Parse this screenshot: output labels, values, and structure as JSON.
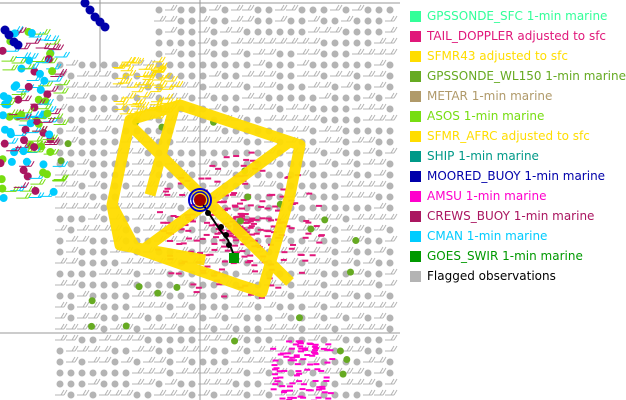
{
  "map": {
    "storm_center_color": "#a00000",
    "ring_color": "#0000cc",
    "track_color": "#000000",
    "flagged_color": "#b4b4b4",
    "flight_track_color": "#ffdd00",
    "tail_doppler_color": "#e0187a"
  },
  "legend": {
    "items": [
      {
        "label": "GPSSONDE_SFC 1-min marine",
        "color": "#33ff99"
      },
      {
        "label": "TAIL_DOPPLER adjusted to sfc",
        "color": "#e0187a"
      },
      {
        "label": "SFMR43 adjusted to sfc",
        "color": "#ffdd00"
      },
      {
        "label": "GPSSONDE_WL150 1-min marine",
        "color": "#66aa22"
      },
      {
        "label": "METAR 1-min marine",
        "color": "#b09a6a"
      },
      {
        "label": "ASOS 1-min marine",
        "color": "#77dd11"
      },
      {
        "label": "SFMR_AFRC adjusted to sfc",
        "color": "#ffdd00"
      },
      {
        "label": "SHIP 1-min marine",
        "color": "#009988"
      },
      {
        "label": "MOORED_BUOY 1-min marine",
        "color": "#0000aa"
      },
      {
        "label": "AMSU 1-min marine",
        "color": "#ff00cc"
      },
      {
        "label": "CREWS_BUOY 1-min marine",
        "color": "#aa1660"
      },
      {
        "label": "CMAN 1-min marine",
        "color": "#00ccff"
      },
      {
        "label": "GOES_SWIR 1-min marine",
        "color": "#009900"
      },
      {
        "label": "Flagged observations",
        "color": "#b4b4b4",
        "text_color": "#000000"
      }
    ]
  }
}
